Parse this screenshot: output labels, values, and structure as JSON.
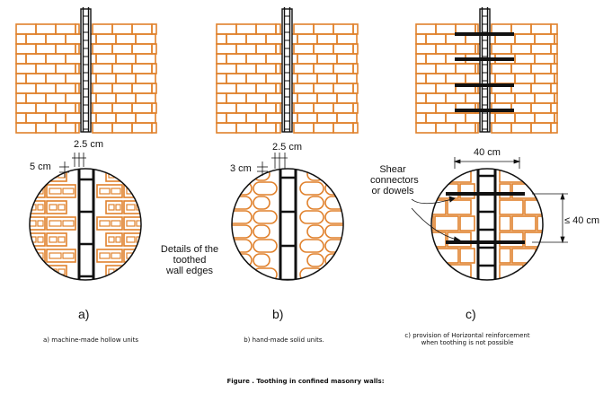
{
  "figure": {
    "caption": "Figure . Toothing in confined masonry walls:",
    "colors": {
      "brick": "#E0812C",
      "steel": "#1a1a1a",
      "line": "#111111"
    }
  },
  "panel_a": {
    "spacing_label": "2.5 cm",
    "toothing_label": "5 cm",
    "letter": "a)",
    "caption": "a) machine-made hollow units"
  },
  "panel_b": {
    "spacing_label": "2.5 cm",
    "toothing_label": "3 cm",
    "letter": "b)",
    "caption": "b) hand-made solid units."
  },
  "panel_c": {
    "width_label": "40 cm",
    "height_label": "≤ 40 cm",
    "connector_label": [
      "Shear",
      "connectors",
      "or dowels"
    ],
    "letter": "c)",
    "caption": [
      "c) provision of Horizontal reinforcement",
      "when toothing is not possible"
    ]
  },
  "details_label": [
    "Details of the",
    "toothed",
    "wall edges"
  ]
}
